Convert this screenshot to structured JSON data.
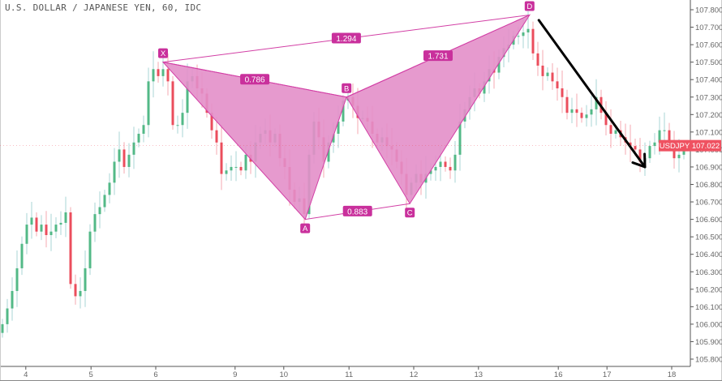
{
  "header": {
    "title": "U.S. DOLLAR / JAPANESE YEN, 60, IDC"
  },
  "chart_data": {
    "type": "candlestick",
    "symbol": "USDJPY",
    "last_price": "107.022",
    "ylim": [
      105.75,
      107.85
    ],
    "y_ticks": [
      "107.800",
      "107.700",
      "107.600",
      "107.500",
      "107.400",
      "107.300",
      "107.200",
      "107.100",
      "107.000",
      "106.900",
      "106.800",
      "106.700",
      "106.600",
      "106.500",
      "106.400",
      "106.300",
      "106.200",
      "106.100",
      "106.000",
      "105.900",
      "105.800"
    ],
    "x_ticks": [
      {
        "label": "4",
        "bar": 4.8
      },
      {
        "label": "5",
        "bar": 18.2
      },
      {
        "label": "6",
        "bar": 31.5
      },
      {
        "label": "9",
        "bar": 47.8
      },
      {
        "label": "10",
        "bar": 57.8
      },
      {
        "label": "11",
        "bar": 71.2
      },
      {
        "label": "12",
        "bar": 84.5
      },
      {
        "label": "13",
        "bar": 97.8
      },
      {
        "label": "16",
        "bar": 114.2
      },
      {
        "label": "17",
        "bar": 124.2
      },
      {
        "label": "18",
        "bar": 137.5
      }
    ],
    "closes": [
      106.0,
      106.09,
      106.19,
      106.32,
      106.46,
      106.57,
      106.61,
      106.53,
      106.57,
      106.51,
      106.53,
      106.57,
      106.58,
      106.64,
      106.23,
      106.16,
      106.19,
      106.32,
      106.53,
      106.63,
      106.67,
      106.74,
      106.81,
      106.93,
      107.0,
      106.9,
      106.97,
      107.04,
      107.09,
      107.14,
      107.39,
      107.46,
      107.42,
      107.46,
      107.39,
      107.14,
      107.14,
      107.21,
      107.39,
      107.42,
      107.35,
      107.32,
      107.21,
      107.11,
      107.04,
      106.86,
      106.88,
      106.9,
      106.9,
      106.88,
      106.97,
      106.93,
      107.04,
      107.09,
      107.11,
      107.04,
      107.09,
      106.95,
      106.9,
      106.77,
      106.7,
      106.72,
      106.63,
      106.97,
      107.16,
      107.07,
      106.93,
      107.04,
      107.09,
      107.16,
      107.28,
      107.3,
      107.25,
      107.18,
      107.18,
      107.16,
      107.09,
      107.04,
      107.07,
      107.02,
      107.0,
      106.93,
      106.86,
      106.74,
      106.81,
      106.86,
      106.81,
      106.86,
      106.88,
      106.9,
      106.93,
      106.9,
      106.88,
      106.97,
      107.16,
      107.23,
      107.3,
      107.35,
      107.32,
      107.39,
      107.46,
      107.44,
      107.53,
      107.58,
      107.6,
      107.65,
      107.65,
      107.67,
      107.69,
      107.55,
      107.48,
      107.42,
      107.44,
      107.39,
      107.35,
      107.3,
      107.21,
      107.23,
      107.21,
      107.18,
      107.2,
      107.23,
      107.3,
      107.21,
      107.14,
      107.09,
      107.11,
      107.07,
      107.04,
      107.02,
      107.0,
      106.93,
      106.95,
      107.02,
      107.04,
      107.11,
      107.11,
      107.04,
      106.95,
      106.97,
      107.022
    ],
    "pattern": {
      "points": [
        {
          "label": "X",
          "bar": 33,
          "price": 107.5
        },
        {
          "label": "A",
          "bar": 62.2,
          "price": 106.6
        },
        {
          "label": "B",
          "bar": 70.7,
          "price": 107.3
        },
        {
          "label": "C",
          "bar": 83.7,
          "price": 106.69
        },
        {
          "label": "D",
          "bar": 108.3,
          "price": 107.77
        }
      ],
      "ratios": [
        {
          "from": "X",
          "to": "D",
          "value": "1.294"
        },
        {
          "from": "X",
          "to": "B",
          "value": "0.786"
        },
        {
          "from": "B",
          "to": "D",
          "value": "1.731"
        },
        {
          "from": "A",
          "to": "C",
          "value": "0.883"
        }
      ]
    },
    "arrow": {
      "from": {
        "bar": 110.2,
        "price": 107.74
      },
      "to": {
        "bar": 132,
        "price": 106.9
      }
    },
    "colors": {
      "up": "#53b987",
      "down": "#eb4d5c",
      "pattern_fill": "#e38fc9",
      "pattern_line": "#d23fa5",
      "label_bg": "#c9309c",
      "last_price": "#ef5261",
      "arrow": "#000000"
    }
  }
}
